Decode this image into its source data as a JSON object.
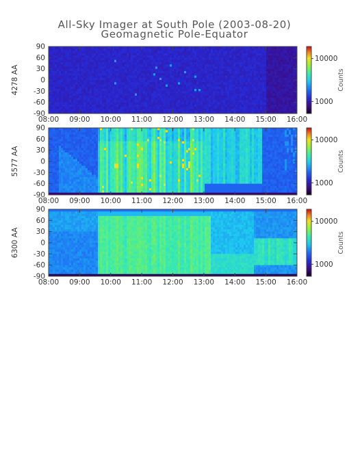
{
  "figure": {
    "title_line1": "All-Sky Imager at South Pole (2003-08-20)",
    "title_line2": "Geomagnetic Pole-Equator"
  },
  "colors": {
    "colormap": [
      "#1a0033",
      "#3a0a8c",
      "#1a2fd6",
      "#1f7cf5",
      "#20d0f0",
      "#3cf0a0",
      "#a8f03c",
      "#f0e020",
      "#f08020",
      "#d01010"
    ]
  },
  "chart_data": [
    {
      "type": "heatmap",
      "panel": "4278 AA",
      "ylabel": "4278 AA",
      "x_ticks": [
        "08:00",
        "09:00",
        "10:00",
        "11:00",
        "12:00",
        "13:00",
        "14:00",
        "15:00",
        "16:00"
      ],
      "y_ticks": [
        "90",
        "60",
        "30",
        "0",
        "-30",
        "-60",
        "-90"
      ],
      "xlim": [
        "08:00",
        "16:00"
      ],
      "ylim": [
        -90,
        90
      ],
      "colorbar": {
        "label": "Counts",
        "scale": "log",
        "ticks": [
          "10000",
          "1000"
        ]
      },
      "description_level": "dim background with faint spots near 10:00-12:45"
    },
    {
      "type": "heatmap",
      "panel": "5577 AA",
      "ylabel": "5577 AA",
      "x_ticks": [
        "08:00",
        "09:00",
        "10:00",
        "11:00",
        "12:00",
        "13:00",
        "14:00",
        "15:00",
        "16:00"
      ],
      "y_ticks": [
        "90",
        "60",
        "30",
        "0",
        "-30",
        "-60",
        "-90"
      ],
      "xlim": [
        "08:00",
        "16:00"
      ],
      "ylim": [
        -90,
        90
      ],
      "colorbar": {
        "label": "Counts",
        "scale": "log",
        "ticks": [
          "10000",
          "1000"
        ]
      }
    },
    {
      "type": "heatmap",
      "panel": "6300 AA",
      "ylabel": "6300 AA",
      "x_ticks": [
        "08:00",
        "09:00",
        "10:00",
        "11:00",
        "12:00",
        "13:00",
        "14:00",
        "15:00",
        "16:00"
      ],
      "y_ticks": [
        "90",
        "60",
        "30",
        "0",
        "-30",
        "-60",
        "-90"
      ],
      "xlim": [
        "08:00",
        "16:00"
      ],
      "ylim": [
        -90,
        90
      ],
      "colorbar": {
        "label": "Counts",
        "scale": "log",
        "ticks": [
          "10000",
          "1000"
        ]
      }
    }
  ]
}
